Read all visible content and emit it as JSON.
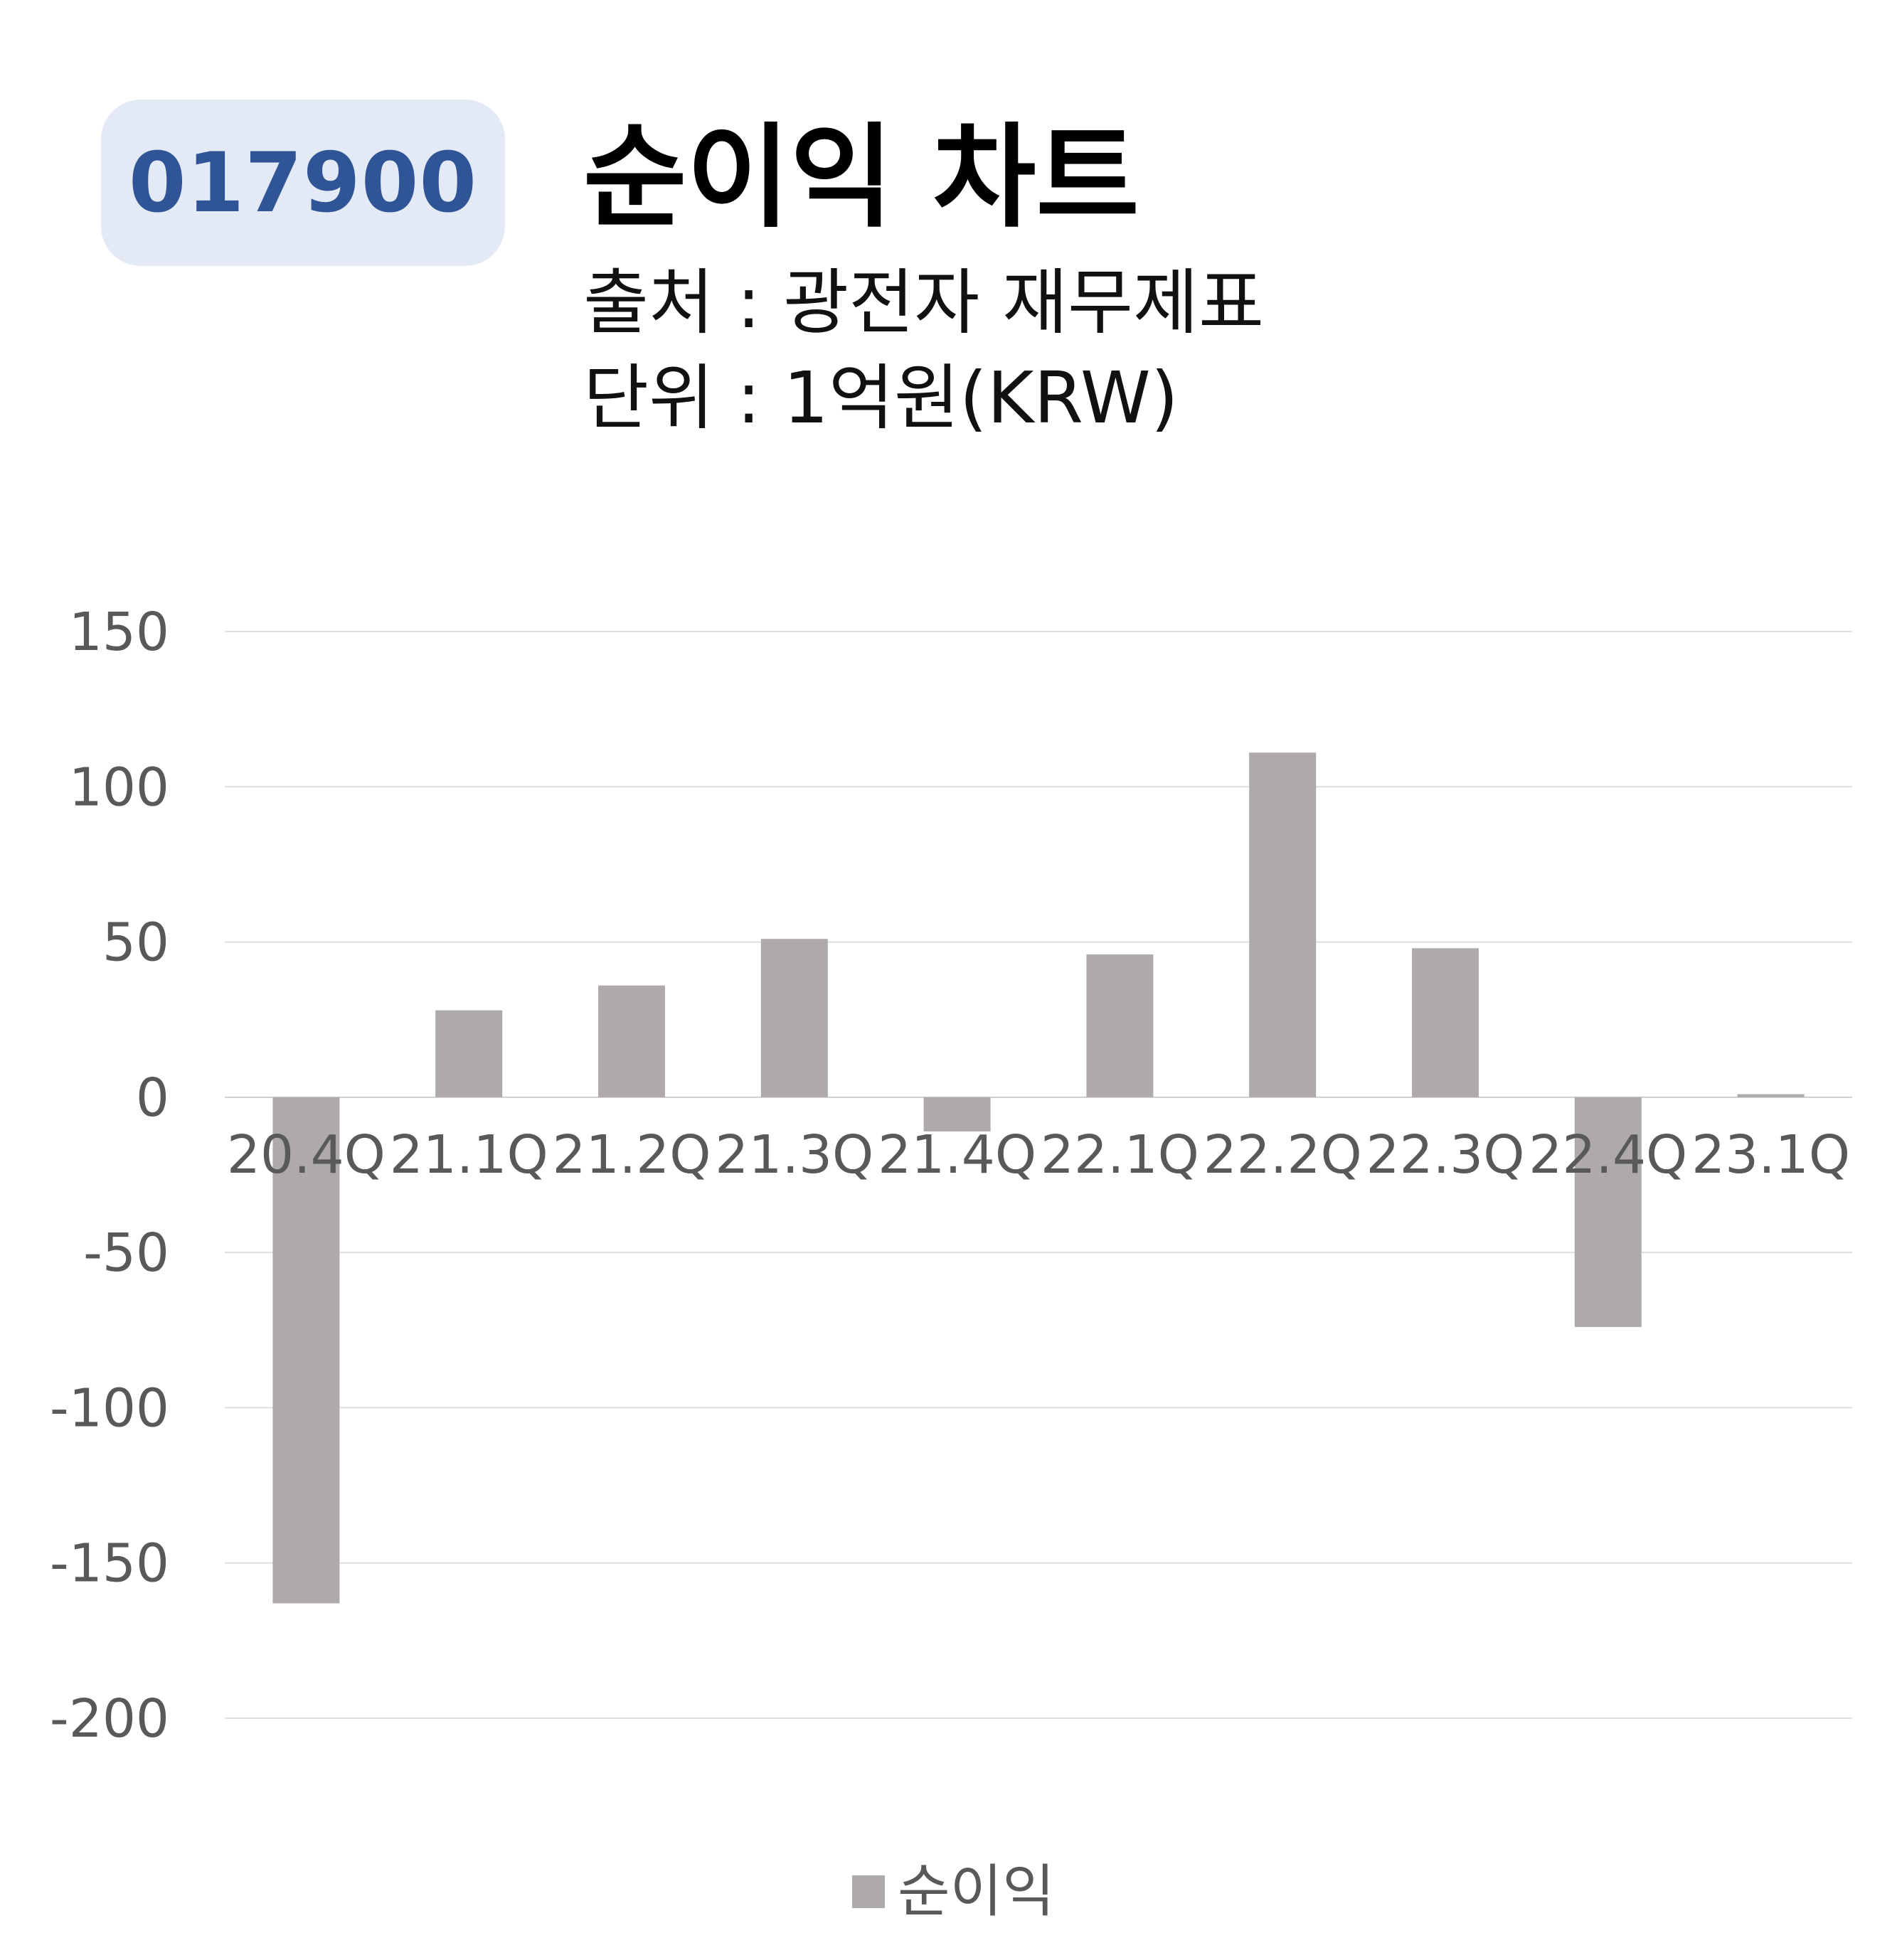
{
  "badge": {
    "ticker": "017900"
  },
  "header": {
    "title": "순이익 차트",
    "source": "출처 : 광전자 재무제표",
    "unit": "단위 : 1억원(KRW)"
  },
  "chart_data": {
    "type": "bar",
    "title": "순이익 차트",
    "categories": [
      "20.4Q",
      "21.1Q",
      "21.2Q",
      "21.3Q",
      "21.4Q",
      "22.1Q",
      "22.2Q",
      "22.3Q",
      "22.4Q",
      "23.1Q"
    ],
    "series": [
      {
        "name": "순이익",
        "values": [
          -163,
          28,
          36,
          51,
          -11,
          46,
          111,
          48,
          -74,
          1
        ],
        "color": "#aeaaaa"
      }
    ],
    "ylim": [
      -200,
      150
    ],
    "yticks": [
      150,
      100,
      50,
      0,
      -50,
      -100,
      -150,
      -200
    ],
    "grid": true,
    "legend": "bottom-center"
  }
}
